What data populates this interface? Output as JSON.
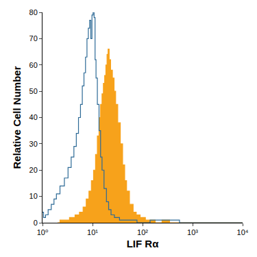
{
  "chart_data": {
    "type": "line",
    "x_label": "LIF Rα",
    "y_label": "Relative Cell Number",
    "log": "x",
    "grid": false,
    "xlim": [
      1,
      10000
    ],
    "xticks": [
      {
        "value": 1,
        "label": "10⁰"
      },
      {
        "value": 10,
        "label": "10¹"
      },
      {
        "value": 100,
        "label": "10²"
      },
      {
        "value": 1000,
        "label": "10³"
      },
      {
        "value": 10000,
        "label": "10⁴"
      }
    ],
    "ylim": [
      0,
      80
    ],
    "yticks": [
      0,
      10,
      20,
      30,
      40,
      50,
      60,
      70,
      80
    ],
    "series": [
      {
        "type": "area",
        "color": "#f7a21b",
        "line_style": "step",
        "x": [
          2,
          2.5,
          3,
          4,
          5,
          6,
          7,
          8,
          9,
          10,
          11,
          12,
          13,
          14,
          15,
          16,
          17,
          18,
          19,
          20,
          21,
          22,
          24,
          26,
          28,
          30,
          34,
          38,
          42,
          46,
          50,
          60,
          70,
          80,
          100,
          130,
          160,
          200,
          300,
          400,
          1000,
          10000
        ],
        "values": [
          0,
          1,
          1,
          2,
          3,
          4,
          6,
          9,
          12,
          16,
          20,
          26,
          33,
          40,
          45,
          49,
          53,
          56,
          60,
          64,
          66,
          62,
          58,
          55,
          50,
          45,
          38,
          30,
          22,
          16,
          12,
          7,
          4,
          3,
          2,
          1,
          1,
          0,
          1,
          0,
          0,
          0
        ]
      },
      {
        "type": "line",
        "color": "#2d6a96",
        "line_style": "step",
        "x": [
          1,
          1.1,
          1.2,
          1.4,
          1.6,
          1.8,
          2,
          2.5,
          3,
          3.5,
          4,
          4.5,
          5,
          5.5,
          6,
          6.5,
          7,
          7.5,
          8,
          8.5,
          9,
          9.5,
          10,
          10.5,
          11,
          11.5,
          12,
          13,
          14,
          15,
          16,
          18,
          20,
          22,
          25,
          30,
          40,
          60,
          100,
          200,
          300,
          1000,
          10000
        ],
        "values": [
          4,
          2,
          3,
          5,
          7,
          9,
          11,
          14,
          17,
          21,
          25,
          29,
          34,
          40,
          45,
          52,
          57,
          63,
          70,
          74,
          77,
          70,
          79,
          80,
          78,
          62,
          55,
          45,
          35,
          25,
          20,
          13,
          8,
          5,
          3,
          2,
          1,
          1,
          0,
          1,
          1,
          0,
          0
        ]
      }
    ]
  }
}
